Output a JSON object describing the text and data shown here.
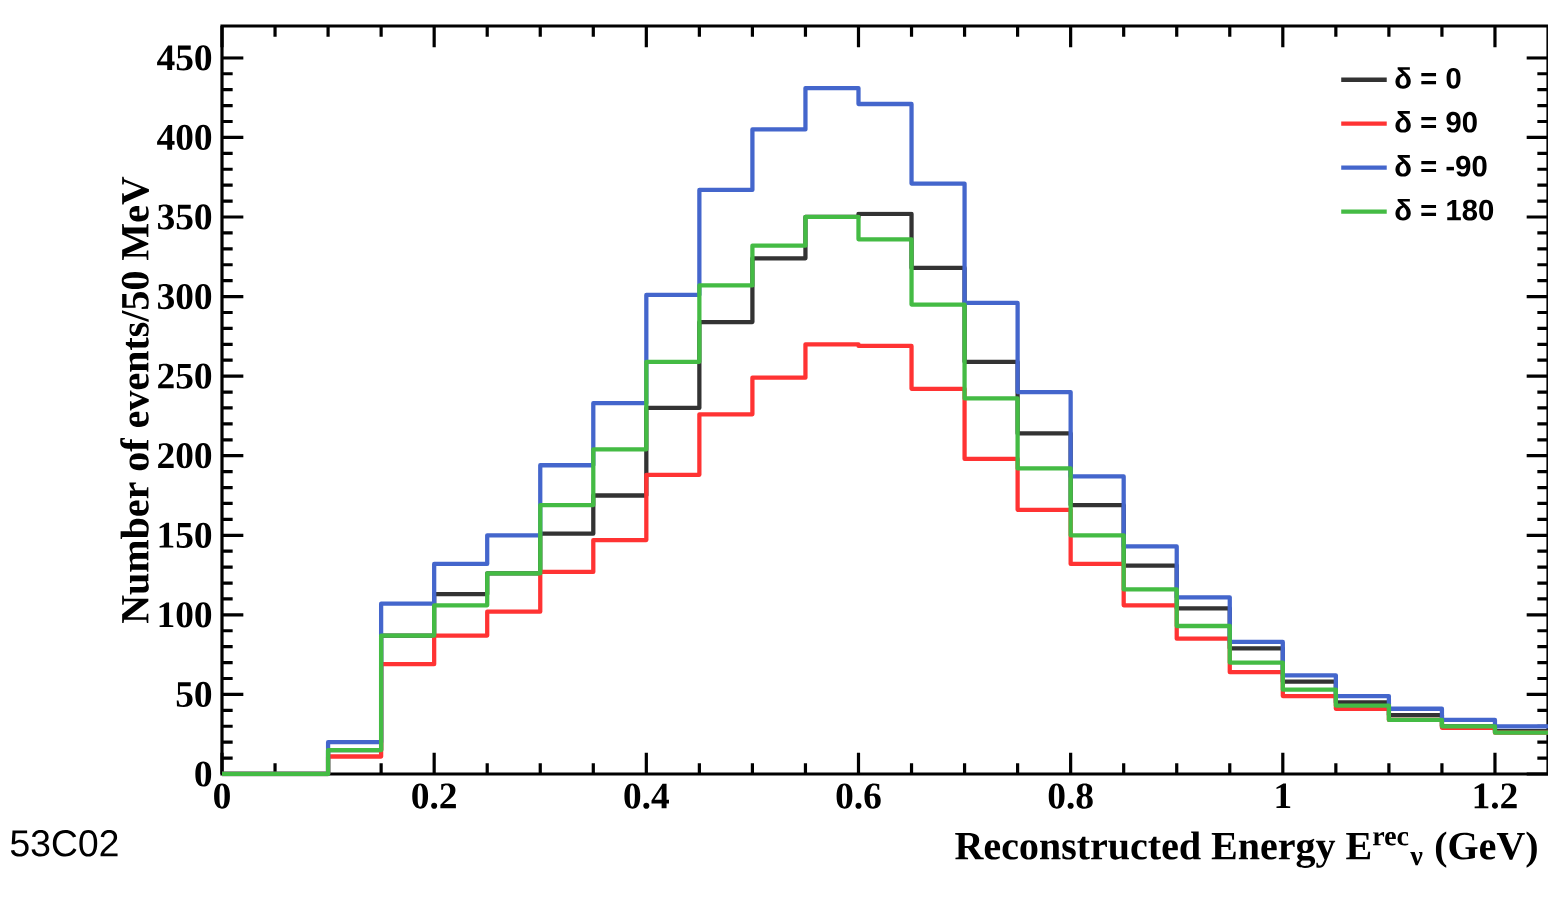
{
  "chart_data": {
    "type": "histogram",
    "xlabel": "Reconstructed Energy E$^{rec}$$_{ν}$ (GeV)",
    "ylabel": "Number of events/50 MeV",
    "bins": [
      0,
      0.05,
      0.1,
      0.15,
      0.2,
      0.25,
      0.3,
      0.35,
      0.4,
      0.45,
      0.5,
      0.55,
      0.6,
      0.65,
      0.7,
      0.75,
      0.8,
      0.85,
      0.9,
      0.95,
      1.0,
      1.05,
      1.1,
      1.15,
      1.2,
      1.25
    ],
    "series": [
      {
        "name": "δ = 0",
        "color": "#333333",
        "values": [
          0,
          0,
          15,
          87,
          113,
          126,
          151,
          175,
          230,
          284,
          324,
          350,
          352,
          318,
          259,
          214,
          169,
          131,
          104,
          79,
          58,
          45,
          37,
          30,
          27
        ]
      },
      {
        "name": "δ = 90",
        "color": "#ff3333",
        "values": [
          0,
          0,
          11,
          69,
          87,
          102,
          127,
          147,
          188,
          226,
          249,
          270,
          269,
          242,
          198,
          166,
          132,
          106,
          85,
          64,
          49,
          41,
          34,
          29,
          26
        ]
      },
      {
        "name": "δ = -90",
        "color": "#4466cc",
        "values": [
          0,
          0,
          20,
          107,
          132,
          150,
          194,
          233,
          301,
          367,
          405,
          431,
          421,
          371,
          296,
          240,
          187,
          143,
          111,
          83,
          62,
          49,
          41,
          34,
          30
        ]
      },
      {
        "name": "δ = 180",
        "color": "#44bb44",
        "values": [
          0,
          0,
          15,
          87,
          106,
          126,
          169,
          204,
          259,
          307,
          332,
          350,
          336,
          295,
          236,
          192,
          150,
          116,
          93,
          70,
          53,
          43,
          34,
          30,
          26
        ]
      }
    ],
    "xlim": [
      0,
      1.25
    ],
    "ylim": [
      0,
      470
    ],
    "xticks": [
      0,
      0.2,
      0.4,
      0.6,
      0.8,
      1,
      1.2
    ],
    "yticks": [
      0,
      50,
      100,
      150,
      200,
      250,
      300,
      350,
      400,
      450
    ],
    "grid": false,
    "legend": "top right",
    "annotations": [
      "53C02"
    ]
  }
}
